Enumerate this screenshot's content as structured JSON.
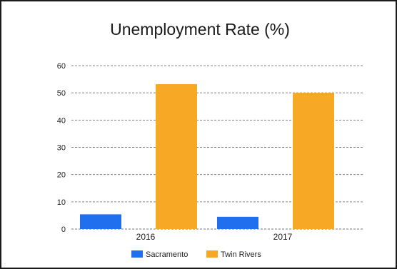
{
  "chart_data": {
    "type": "bar",
    "title": "Unemployment Rate (%)",
    "categories": [
      "2016",
      "2017"
    ],
    "series": [
      {
        "name": "Sacramento",
        "color": "#1f6fef",
        "values": [
          5.4,
          4.5
        ]
      },
      {
        "name": "Twin Rivers",
        "color": "#f7a825",
        "values": [
          53.2,
          50.0
        ]
      }
    ],
    "yticks": [
      0,
      10,
      20,
      30,
      40,
      50,
      60
    ],
    "ylim": [
      0,
      60
    ],
    "grid": true,
    "legend": "bottom"
  }
}
